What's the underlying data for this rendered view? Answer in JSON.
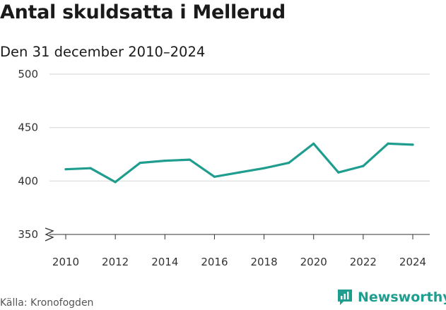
{
  "title": "Antal skuldsatta i Mellerud",
  "subtitle": "Den 31 december 2010–2024",
  "source": "Källa: Kronofogden",
  "brand": "Newsworthy",
  "colors": {
    "line": "#1f9d8f",
    "grid": "#d9d9d9",
    "brand": "#1f9d8f"
  },
  "chart_data": {
    "type": "line",
    "x": [
      2010,
      2011,
      2012,
      2013,
      2014,
      2015,
      2016,
      2017,
      2018,
      2019,
      2020,
      2021,
      2022,
      2023,
      2024
    ],
    "series": [
      {
        "values": [
          411,
          412,
          399,
          417,
          419,
          420,
          404,
          408,
          412,
          417,
          435,
          408,
          414,
          435,
          434
        ]
      }
    ],
    "ylim": [
      350,
      500
    ],
    "yticks": [
      350,
      400,
      450,
      500
    ],
    "xticks": [
      2010,
      2012,
      2014,
      2016,
      2018,
      2020,
      2022,
      2024
    ],
    "axis_break": true,
    "grid": true,
    "title": "Antal skuldsatta i Mellerud",
    "xlabel": "",
    "ylabel": ""
  }
}
